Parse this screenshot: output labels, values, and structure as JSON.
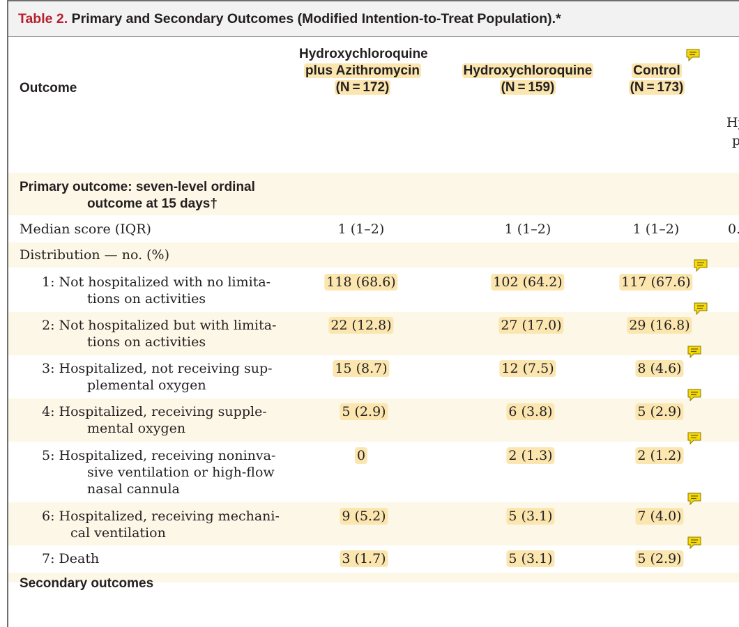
{
  "table": {
    "label": "Table 2.",
    "title": "Primary and Secondary Outcomes (Modified Intention-to-Treat Population).*",
    "outcome_header": "Outcome",
    "columns": [
      {
        "line1": "Hydroxychloroquine",
        "line2": "plus Azithromycin",
        "line3": "(N = 172)"
      },
      {
        "line1": "Hydroxychloroquine",
        "line2": "(N = 159)"
      },
      {
        "line1": "Control",
        "line2": "(N = 173)"
      }
    ],
    "cut_header": {
      "line1": "Hy",
      "line2": "p"
    },
    "primary_section": {
      "line1": "Primary outcome: seven-level ordinal",
      "line2": "outcome at 15 days†"
    },
    "median_row": {
      "label": "Median score (IQR)",
      "values": [
        "1 (1–2)",
        "1 (1–2)",
        "1 (1–2)"
      ],
      "cut": "0."
    },
    "distribution_label": "Distribution — no. (%)",
    "rows": [
      {
        "line1": "1: Not hospitalized with no limita-",
        "line2": "tions on activities",
        "values": [
          "118 (68.6)",
          "102 (64.2)",
          "117 (67.6)"
        ]
      },
      {
        "line1": "2: Not hospitalized but with limita-",
        "line2": "tions on activities",
        "values": [
          "22 (12.8)",
          "27 (17.0)",
          "29 (16.8)"
        ]
      },
      {
        "line1": "3: Hospitalized, not receiving sup-",
        "line2": "plemental oxygen",
        "values": [
          "15 (8.7)",
          "12 (7.5)",
          "8 (4.6)"
        ]
      },
      {
        "line1": "4: Hospitalized, receiving supple-",
        "line2": "mental oxygen",
        "values": [
          "5 (2.9)",
          "6 (3.8)",
          "5 (2.9)"
        ]
      },
      {
        "line1": "5: Hospitalized, receiving noninva-",
        "line2": "sive ventilation or high-flow",
        "line3": "nasal cannula",
        "values": [
          "0",
          "2 (1.3)",
          "2 (1.2)"
        ]
      },
      {
        "line1": "6: Hospitalized, receiving mechani-",
        "line2": "cal ventilation",
        "values": [
          "9 (5.2)",
          "5 (3.1)",
          "7 (4.0)"
        ]
      },
      {
        "line1": "7: Death",
        "values": [
          "3 (1.7)",
          "5 (3.1)",
          "5 (2.9)"
        ]
      }
    ],
    "secondary_partial": "Secondary outcomes"
  },
  "colors": {
    "label_red": "#b6202e",
    "highlight": "#fbe6b0",
    "band": "#fdf7e7",
    "comment": "#f5d90a"
  }
}
